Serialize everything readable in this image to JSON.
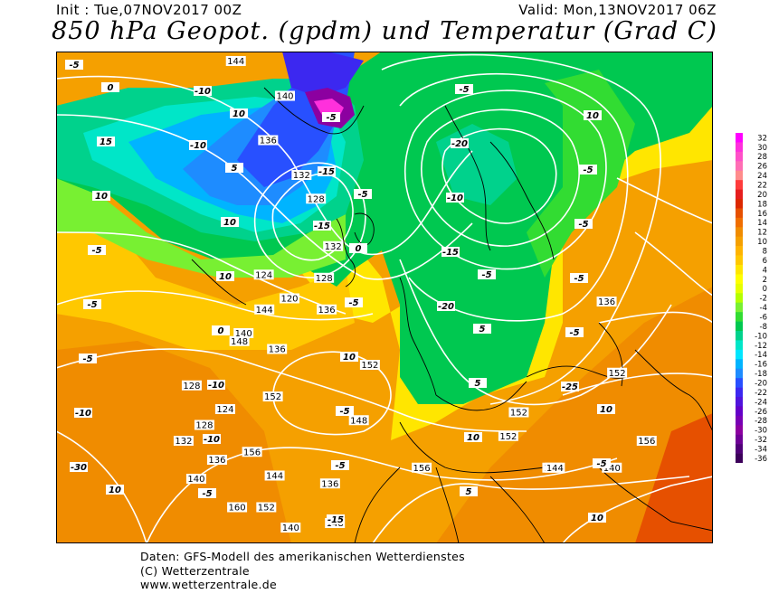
{
  "header": {
    "init": "Init : Tue,07NOV2017 00Z",
    "valid": "Valid: Mon,13NOV2017 06Z",
    "title": "850 hPa Geopot. (gpdm) und Temperatur (Grad C)"
  },
  "colors": {
    "very_cold": "#5a00c8",
    "cold_blue": "#1e3cff",
    "light_blue": "#32c8ff",
    "cyan": "#00e0dc",
    "teal": "#00d2a0",
    "green": "#00c850",
    "lime": "#50e650",
    "yellow": "#ffff00",
    "orange": "#ffa500",
    "dark_orange": "#f07800",
    "contour": "#ffffff",
    "coast": "#000000"
  },
  "legend": {
    "values": [
      "32",
      "30",
      "28",
      "26",
      "24",
      "22",
      "20",
      "18",
      "16",
      "14",
      "12",
      "10",
      "8",
      "6",
      "4",
      "2",
      "0",
      "-2",
      "-4",
      "-6",
      "-8",
      "-10",
      "-12",
      "-14",
      "-16",
      "-18",
      "-20",
      "-22",
      "-24",
      "-26",
      "-28",
      "-30",
      "-32",
      "-34",
      "-36"
    ],
    "colors": [
      "#ff00ff",
      "#ff30dc",
      "#ff50c8",
      "#ff6eb4",
      "#ff8c8c",
      "#ff3c3c",
      "#e61e1e",
      "#dc2800",
      "#e65000",
      "#f06e00",
      "#f08c00",
      "#f5a000",
      "#ffb400",
      "#ffc800",
      "#ffe600",
      "#ffff00",
      "#e6ff00",
      "#b4ff00",
      "#78f032",
      "#32dc32",
      "#00c850",
      "#00d28c",
      "#00e6c8",
      "#00e6ff",
      "#00b4ff",
      "#1e8cff",
      "#2850ff",
      "#3c28f0",
      "#5014dc",
      "#6400c8",
      "#7800b4",
      "#8c00a0",
      "#6e0096",
      "#500078",
      "#3c005a"
    ]
  },
  "contour_labels": [
    "144",
    "140",
    "136",
    "132",
    "128",
    "124",
    "120",
    "148",
    "152",
    "156",
    "160",
    "132",
    "128",
    "136",
    "152",
    "148",
    "156",
    "152",
    "152",
    "148",
    "144",
    "140",
    "136",
    "152",
    "156",
    "144",
    "140",
    "136",
    "128",
    "124",
    "128",
    "132",
    "136",
    "140",
    "144",
    "136",
    "152",
    "148",
    "140"
  ],
  "temp_labels": [
    "-5",
    "-10",
    "-15",
    "-20",
    "-25",
    "-30",
    "-10",
    "-15",
    "-15",
    "-5",
    "-10",
    "-5",
    "-5",
    "-10",
    "-5",
    "-5",
    "-10",
    "-15",
    "-20",
    "-5",
    "-5",
    "-10",
    "-5",
    "-5",
    "-5",
    "-5",
    "0",
    "-5",
    "5",
    "10",
    "10",
    "10",
    "10",
    "10",
    "10",
    "15",
    "10",
    "-5",
    "5",
    "-5",
    "0",
    "5",
    "0",
    "5",
    "10",
    "10",
    "10",
    "-5",
    "-5"
  ],
  "footer": {
    "line1": "Daten: GFS-Modell des amerikanischen Wetterdienstes",
    "line2": "(C) Wetterzentrale",
    "line3": "www.wetterzentrale.de"
  }
}
